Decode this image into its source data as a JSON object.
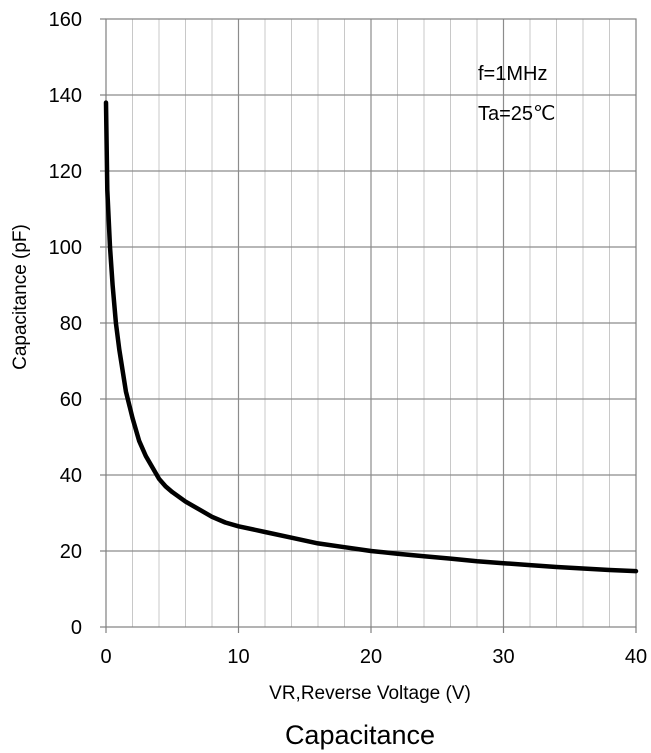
{
  "chart_data": {
    "type": "line",
    "title": "Capacitance",
    "xlabel": "VR,Reverse Voltage (V)",
    "ylabel": "Capacitance (pF)",
    "xlim": [
      0,
      40
    ],
    "ylim": [
      0,
      160
    ],
    "x_ticks": [
      0,
      10,
      20,
      30,
      40
    ],
    "y_ticks": [
      0,
      20,
      40,
      60,
      80,
      100,
      120,
      140,
      160
    ],
    "x_minor_step": 2,
    "y_minor_step": 20,
    "grid": true,
    "annotations": [
      "f=1MHz",
      "Ta=25℃"
    ],
    "series": [
      {
        "x": [
          0,
          0.1,
          0.3,
          0.5,
          0.75,
          1,
          1.5,
          2,
          2.5,
          3,
          3.5,
          4,
          4.5,
          5,
          6,
          7,
          8,
          9,
          10,
          12,
          14,
          16,
          18,
          20,
          22,
          24,
          26,
          28,
          30,
          32,
          34,
          36,
          38,
          40
        ],
        "values": [
          138,
          115,
          100,
          90,
          80,
          73,
          62,
          55,
          49,
          45,
          42,
          39,
          37,
          35.5,
          33,
          31,
          29,
          27.5,
          26.5,
          25,
          23.5,
          22,
          21,
          20,
          19.3,
          18.6,
          18,
          17.3,
          16.8,
          16.3,
          15.8,
          15.4,
          15,
          14.7
        ],
        "color": "#000000"
      }
    ]
  }
}
